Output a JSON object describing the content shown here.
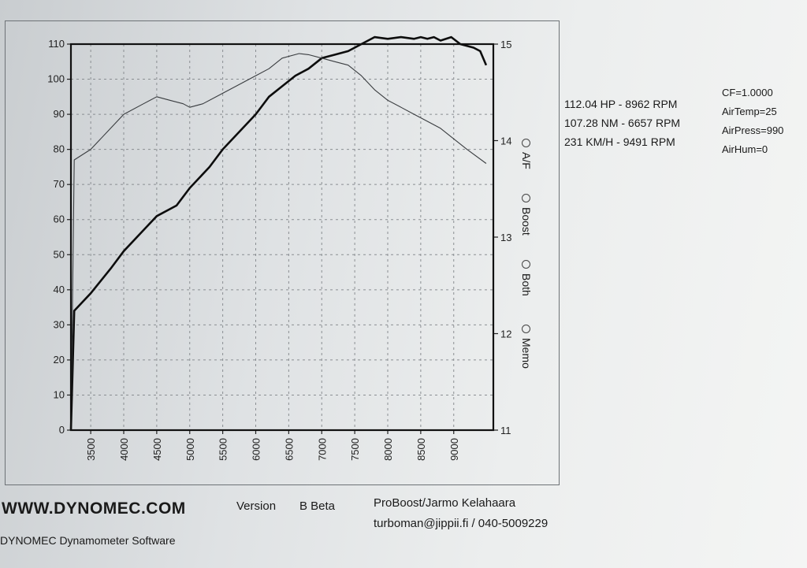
{
  "readouts": {
    "hp": "112.04 HP - 8962 RPM",
    "nm": "107.28 NM - 6657 RPM",
    "kmh": "231 KM/H - 9491 RPM"
  },
  "conditions": {
    "cf": "CF=1.0000",
    "air_temp": "AirTemp=25",
    "air_press": "AirPress=990",
    "air_hum": "AirHum=0"
  },
  "modes": [
    {
      "label": "A/F"
    },
    {
      "label": "Boost"
    },
    {
      "label": "Both"
    },
    {
      "label": "Memo"
    }
  ],
  "footer": {
    "url": "WWW.DYNOMEC.COM",
    "version_label": "Version",
    "version_value": "B Beta",
    "owner": "ProBoost/Jarmo Kelahaara",
    "contact": "turboman@jippii.fi / 040-5009229",
    "software": "DYNOMEC Dynamometer Software"
  },
  "chart_data": {
    "type": "line",
    "xlim": [
      3200,
      9600
    ],
    "x_ticks": [
      "3500",
      "4000",
      "4500",
      "5000",
      "5500",
      "6000",
      "6500",
      "7000",
      "7500",
      "8000",
      "8500",
      "9000"
    ],
    "ylim": [
      0,
      110
    ],
    "y_ticks": [
      "0",
      "10",
      "20",
      "30",
      "40",
      "50",
      "60",
      "70",
      "80",
      "90",
      "100",
      "110"
    ],
    "y2lim": [
      11,
      15
    ],
    "y2_ticks": [
      "11",
      "12",
      "13",
      "14",
      "15"
    ],
    "grid": true,
    "series": [
      {
        "name": "",
        "style": "bold",
        "x": [
          3200,
          3250,
          3500,
          3800,
          4000,
          4300,
          4500,
          4800,
          5000,
          5300,
          5500,
          5800,
          6000,
          6200,
          6400,
          6600,
          6800,
          7000,
          7200,
          7400,
          7600,
          7800,
          8000,
          8200,
          8400,
          8500,
          8600,
          8700,
          8800,
          8962,
          9100,
          9300,
          9400,
          9491
        ],
        "y": [
          0,
          34,
          39,
          46,
          51,
          57,
          61,
          64,
          69,
          75,
          80,
          86,
          90,
          95,
          98,
          101,
          103,
          106,
          107,
          108,
          110,
          112,
          111.5,
          112,
          111.5,
          112,
          111.5,
          112,
          111,
          112,
          110,
          109,
          108,
          104
        ]
      },
      {
        "name": "",
        "style": "thin",
        "x": [
          3200,
          3250,
          3500,
          3800,
          4000,
          4300,
          4500,
          4700,
          4900,
          5000,
          5200,
          5500,
          5800,
          6000,
          6200,
          6400,
          6657,
          6800,
          7000,
          7200,
          7400,
          7600,
          7800,
          8000,
          8200,
          8400,
          8600,
          8800,
          9000,
          9200,
          9491
        ],
        "y": [
          0,
          77,
          80,
          86,
          90,
          93,
          95,
          94,
          93,
          92,
          93,
          96,
          99,
          101,
          103,
          106,
          107.3,
          107,
          106,
          105,
          104,
          101,
          97,
          94,
          92,
          90,
          88,
          86,
          83,
          80,
          76
        ]
      }
    ]
  }
}
